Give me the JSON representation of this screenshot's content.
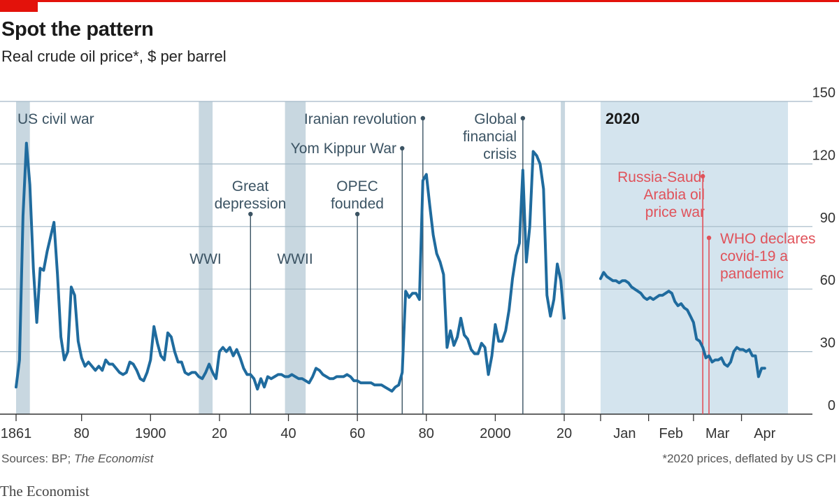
{
  "header": {
    "title": "Spot the pattern",
    "subtitle": "Real crude oil price*, $ per barrel"
  },
  "footer": {
    "source_prefix": "Sources: BP; ",
    "source_italic": "The Economist",
    "note": "*2020 prices, deflated by US CPI",
    "brand": "The Economist"
  },
  "colors": {
    "line": "#1f6b9e",
    "shade": "#c8d7e0",
    "panel_bg": "#d4e4ee",
    "grid": "#a3b8c6",
    "annotation": "#3b5363",
    "highlight": "#e0525a",
    "accent": "#e3120b"
  },
  "chart_data": [
    {
      "type": "line",
      "name": "history",
      "title": "Spot the pattern",
      "ylabel": "Real crude oil price*, $ per barrel",
      "xlim": [
        1861,
        2020
      ],
      "ylim": [
        0,
        150
      ],
      "grid": true,
      "x_ticks": [
        1861,
        1880,
        1900,
        1920,
        1940,
        1960,
        1980,
        2000,
        2020
      ],
      "x_tick_labels": [
        "1861",
        "80",
        "1900",
        "20",
        "40",
        "60",
        "80",
        "2000",
        "20"
      ],
      "shaded_periods": [
        {
          "label": "US civil war",
          "start": 1861,
          "end": 1865
        },
        {
          "label": "WWI",
          "start": 1914,
          "end": 1918
        },
        {
          "label": "WWII",
          "start": 1939,
          "end": 1945
        },
        {
          "label": "",
          "start": 2019,
          "end": 2020
        }
      ],
      "events": [
        {
          "label": "Great depression",
          "year": 1929
        },
        {
          "label": "OPEC founded",
          "year": 1960
        },
        {
          "label": "Yom Kippur War",
          "year": 1973
        },
        {
          "label": "Iranian revolution",
          "year": 1979
        },
        {
          "label": "Global financial crisis",
          "year": 2008
        }
      ],
      "series": [
        {
          "name": "Real crude oil price",
          "points": [
            [
              1861,
              13
            ],
            [
              1862,
              26
            ],
            [
              1863,
              95
            ],
            [
              1864,
              130
            ],
            [
              1865,
              110
            ],
            [
              1866,
              70
            ],
            [
              1867,
              44
            ],
            [
              1868,
              70
            ],
            [
              1869,
              69
            ],
            [
              1870,
              78
            ],
            [
              1871,
              85
            ],
            [
              1872,
              92
            ],
            [
              1873,
              67
            ],
            [
              1874,
              37
            ],
            [
              1875,
              26
            ],
            [
              1876,
              30
            ],
            [
              1877,
              61
            ],
            [
              1878,
              57
            ],
            [
              1879,
              35
            ],
            [
              1880,
              27
            ],
            [
              1881,
              23
            ],
            [
              1882,
              25
            ],
            [
              1883,
              23
            ],
            [
              1884,
              21
            ],
            [
              1885,
              23
            ],
            [
              1886,
              21
            ],
            [
              1887,
              26
            ],
            [
              1888,
              24
            ],
            [
              1889,
              24
            ],
            [
              1890,
              22
            ],
            [
              1891,
              20
            ],
            [
              1892,
              19
            ],
            [
              1893,
              20
            ],
            [
              1894,
              25
            ],
            [
              1895,
              24
            ],
            [
              1896,
              21
            ],
            [
              1897,
              17
            ],
            [
              1898,
              16
            ],
            [
              1899,
              20
            ],
            [
              1900,
              26
            ],
            [
              1901,
              42
            ],
            [
              1902,
              34
            ],
            [
              1903,
              28
            ],
            [
              1904,
              26
            ],
            [
              1905,
              39
            ],
            [
              1906,
              37
            ],
            [
              1907,
              30
            ],
            [
              1908,
              25
            ],
            [
              1909,
              25
            ],
            [
              1910,
              20
            ],
            [
              1911,
              19
            ],
            [
              1912,
              20
            ],
            [
              1913,
              20
            ],
            [
              1914,
              18
            ],
            [
              1915,
              17
            ],
            [
              1916,
              20
            ],
            [
              1917,
              24
            ],
            [
              1918,
              20
            ],
            [
              1919,
              17
            ],
            [
              1920,
              30
            ],
            [
              1921,
              32
            ],
            [
              1922,
              30
            ],
            [
              1923,
              32
            ],
            [
              1924,
              28
            ],
            [
              1925,
              31
            ],
            [
              1926,
              27
            ],
            [
              1927,
              22
            ],
            [
              1928,
              19
            ],
            [
              1929,
              19
            ],
            [
              1930,
              17
            ],
            [
              1931,
              12
            ],
            [
              1932,
              17
            ],
            [
              1933,
              13
            ],
            [
              1934,
              18
            ],
            [
              1935,
              17
            ],
            [
              1936,
              18
            ],
            [
              1937,
              19
            ],
            [
              1938,
              19
            ],
            [
              1939,
              18
            ],
            [
              1940,
              18
            ],
            [
              1941,
              19
            ],
            [
              1942,
              18
            ],
            [
              1943,
              17
            ],
            [
              1944,
              17
            ],
            [
              1945,
              16
            ],
            [
              1946,
              15
            ],
            [
              1947,
              18
            ],
            [
              1948,
              22
            ],
            [
              1949,
              21
            ],
            [
              1950,
              19
            ],
            [
              1951,
              18
            ],
            [
              1952,
              17
            ],
            [
              1953,
              17
            ],
            [
              1954,
              18
            ],
            [
              1955,
              18
            ],
            [
              1956,
              18
            ],
            [
              1957,
              19
            ],
            [
              1958,
              18
            ],
            [
              1959,
              16
            ],
            [
              1960,
              16
            ],
            [
              1961,
              15
            ],
            [
              1962,
              15
            ],
            [
              1963,
              15
            ],
            [
              1964,
              15
            ],
            [
              1965,
              14
            ],
            [
              1966,
              14
            ],
            [
              1967,
              14
            ],
            [
              1968,
              13
            ],
            [
              1969,
              12
            ],
            [
              1970,
              11
            ],
            [
              1971,
              13
            ],
            [
              1972,
              14
            ],
            [
              1973,
              20
            ],
            [
              1974,
              59
            ],
            [
              1975,
              56
            ],
            [
              1976,
              58
            ],
            [
              1977,
              58
            ],
            [
              1978,
              55
            ],
            [
              1979,
              112
            ],
            [
              1980,
              115
            ],
            [
              1981,
              100
            ],
            [
              1982,
              86
            ],
            [
              1983,
              77
            ],
            [
              1984,
              73
            ],
            [
              1985,
              67
            ],
            [
              1986,
              32
            ],
            [
              1987,
              40
            ],
            [
              1988,
              33
            ],
            [
              1989,
              37
            ],
            [
              1990,
              46
            ],
            [
              1991,
              38
            ],
            [
              1992,
              36
            ],
            [
              1993,
              31
            ],
            [
              1994,
              29
            ],
            [
              1995,
              29
            ],
            [
              1996,
              34
            ],
            [
              1997,
              32
            ],
            [
              1998,
              19
            ],
            [
              1999,
              28
            ],
            [
              2000,
              43
            ],
            [
              2001,
              35
            ],
            [
              2002,
              35
            ],
            [
              2003,
              40
            ],
            [
              2004,
              50
            ],
            [
              2005,
              65
            ],
            [
              2006,
              76
            ],
            [
              2007,
              82
            ],
            [
              2008,
              117
            ],
            [
              2009,
              73
            ],
            [
              2010,
              90
            ],
            [
              2011,
              126
            ],
            [
              2012,
              124
            ],
            [
              2013,
              120
            ],
            [
              2014,
              108
            ],
            [
              2015,
              57
            ],
            [
              2016,
              47
            ],
            [
              2017,
              55
            ],
            [
              2018,
              72
            ],
            [
              2019,
              64
            ],
            [
              2020,
              46
            ]
          ]
        }
      ]
    },
    {
      "type": "line",
      "name": "2020",
      "title": "2020",
      "ylim": [
        0,
        150
      ],
      "y_ticks": [
        0,
        30,
        60,
        90,
        120,
        150
      ],
      "x_ticks": [
        {
          "label": "Jan",
          "day": 0
        },
        {
          "label": "Feb",
          "day": 31
        },
        {
          "label": "Mar",
          "day": 60
        },
        {
          "label": "Apr",
          "day": 91
        }
      ],
      "xlim": [
        0,
        121
      ],
      "events": [
        {
          "label": "Russia-Saudi Arabia oil price war",
          "day": 66
        },
        {
          "label": "WHO declares covid-19 a pandemic",
          "day": 70
        }
      ],
      "series": [
        {
          "name": "Daily real crude oil price, 2020",
          "points": [
            [
              0,
              65
            ],
            [
              2,
              68
            ],
            [
              4,
              66
            ],
            [
              6,
              65
            ],
            [
              8,
              64
            ],
            [
              10,
              64
            ],
            [
              12,
              63
            ],
            [
              14,
              64
            ],
            [
              16,
              64
            ],
            [
              18,
              63
            ],
            [
              20,
              61
            ],
            [
              22,
              60
            ],
            [
              24,
              59
            ],
            [
              26,
              58
            ],
            [
              28,
              56
            ],
            [
              30,
              55
            ],
            [
              32,
              56
            ],
            [
              34,
              55
            ],
            [
              36,
              56
            ],
            [
              38,
              57
            ],
            [
              40,
              57
            ],
            [
              42,
              58
            ],
            [
              44,
              59
            ],
            [
              46,
              58
            ],
            [
              48,
              54
            ],
            [
              50,
              52
            ],
            [
              52,
              53
            ],
            [
              54,
              51
            ],
            [
              56,
              50
            ],
            [
              58,
              47
            ],
            [
              60,
              44
            ],
            [
              62,
              36
            ],
            [
              64,
              35
            ],
            [
              66,
              32
            ],
            [
              68,
              27
            ],
            [
              70,
              28
            ],
            [
              72,
              25
            ],
            [
              74,
              26
            ],
            [
              76,
              26
            ],
            [
              78,
              27
            ],
            [
              80,
              24
            ],
            [
              82,
              23
            ],
            [
              84,
              25
            ],
            [
              86,
              30
            ],
            [
              88,
              32
            ],
            [
              90,
              31
            ],
            [
              92,
              31
            ],
            [
              94,
              30
            ],
            [
              96,
              31
            ],
            [
              98,
              28
            ],
            [
              100,
              28
            ],
            [
              102,
              18
            ],
            [
              104,
              22
            ],
            [
              106,
              22
            ]
          ]
        }
      ]
    }
  ]
}
